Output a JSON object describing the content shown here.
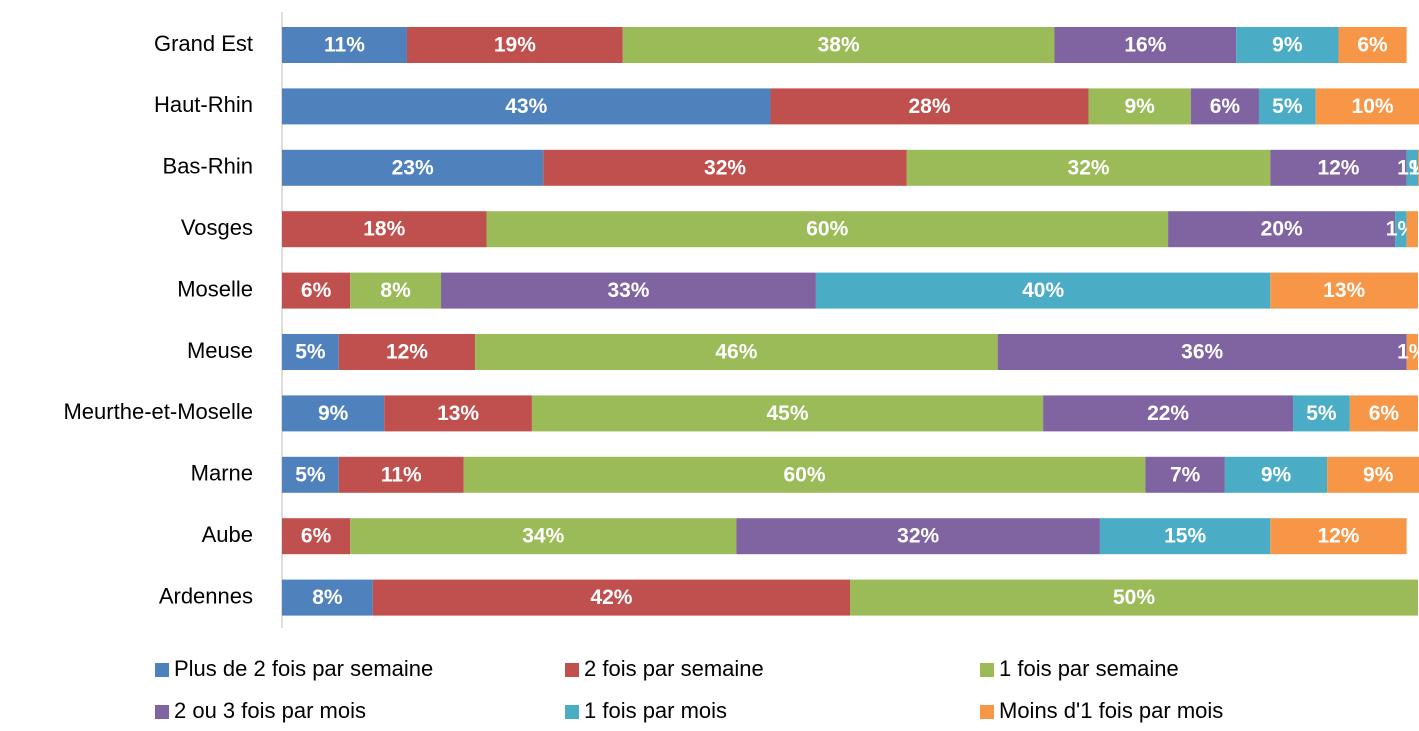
{
  "chart_data": {
    "type": "stacked_barh",
    "categories": [
      "Grand Est",
      "Haut-Rhin",
      "Bas-Rhin",
      "Vosges",
      "Moselle",
      "Meuse",
      "Meurthe-et-Moselle",
      "Marne",
      "Aube",
      "Ardennes"
    ],
    "xlim": [
      0,
      100
    ],
    "series": [
      {
        "name": "Plus de 2 fois par semaine",
        "color": "#4f81bd",
        "values": [
          11,
          43,
          23,
          null,
          null,
          5,
          9,
          5,
          null,
          8
        ],
        "value_labels": [
          "11%",
          "43%",
          "23%",
          null,
          null,
          "5%",
          "9%",
          "5%",
          null,
          "8%"
        ]
      },
      {
        "name": "2 fois par semaine",
        "color": "#c0504d",
        "values": [
          19,
          28,
          32,
          18,
          6,
          12,
          13,
          11,
          6,
          42
        ],
        "value_labels": [
          "19%",
          "28%",
          "32%",
          "18%",
          "6%",
          "12%",
          "13%",
          "11%",
          "6%",
          "42%"
        ]
      },
      {
        "name": "1 fois par semaine",
        "color": "#9bbb59",
        "values": [
          38,
          9,
          32,
          60,
          8,
          46,
          45,
          60,
          34,
          50
        ],
        "value_labels": [
          "38%",
          "9%",
          "32%",
          "60%",
          "8%",
          "46%",
          "45%",
          "60%",
          "34%",
          "50%"
        ]
      },
      {
        "name": "2 ou 3 fois par mois",
        "color": "#8064a2",
        "values": [
          16,
          6,
          12,
          20,
          33,
          36,
          22,
          7,
          32,
          null
        ],
        "value_labels": [
          "16%",
          "6%",
          "12%",
          "20%",
          "33%",
          "36%",
          "22%",
          "7%",
          "32%",
          null
        ]
      },
      {
        "name": "1 fois par mois",
        "color": "#4bacc6",
        "values": [
          9,
          5,
          1,
          1,
          40,
          null,
          5,
          9,
          15,
          null
        ],
        "value_labels": [
          "9%",
          "5%",
          "1%",
          "1%",
          "40%",
          null,
          "5%",
          "9%",
          "15%",
          null
        ]
      },
      {
        "name": "Moins d'1 fois par mois",
        "color": "#f79646",
        "values": [
          6,
          10,
          1,
          1,
          13,
          1,
          6,
          9,
          12,
          null
        ],
        "value_labels": [
          "6%",
          "10%",
          "1%",
          null,
          "13%",
          "1%",
          "6%",
          "9%",
          "12%",
          null
        ]
      }
    ]
  }
}
